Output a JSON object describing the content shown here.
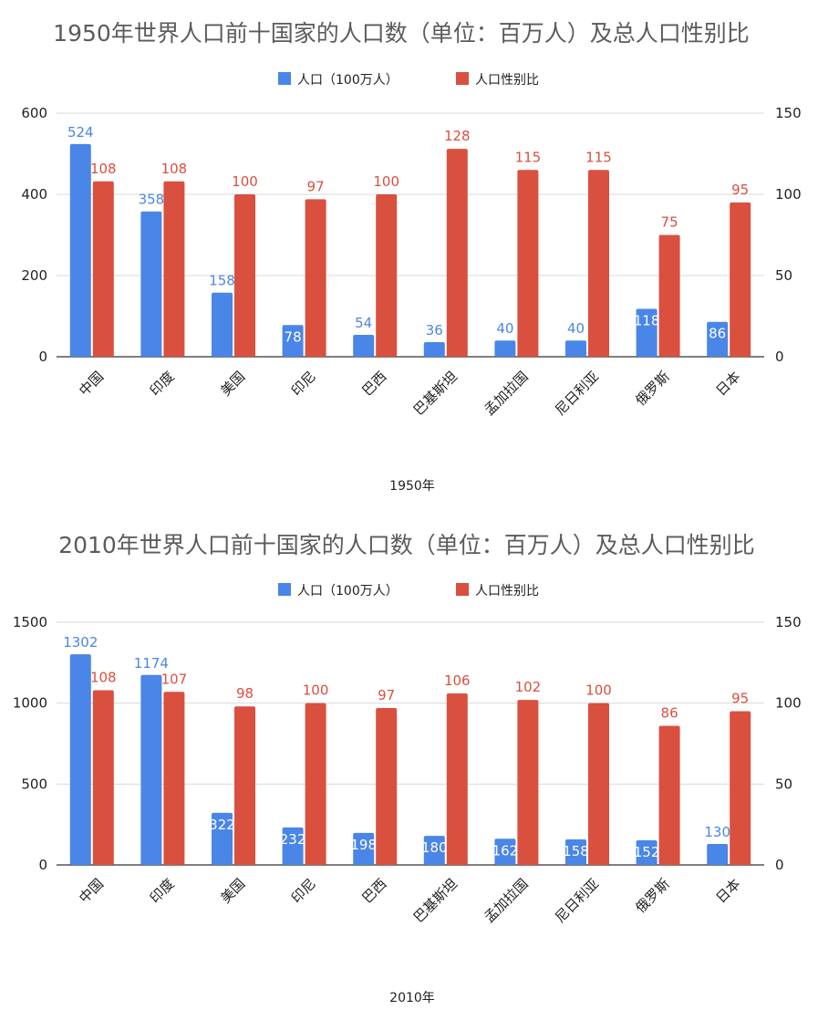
{
  "chart_data": [
    {
      "type": "bar",
      "title": "1950年世界人口前十国家的人口数（单位：百万人）及总人口性别比",
      "xlabel": "1950年",
      "categories": [
        "中国",
        "印度",
        "美国",
        "印尼",
        "巴西",
        "巴基斯坦",
        "孟加拉国",
        "尼日利亚",
        "俄罗斯",
        "日本"
      ],
      "series": [
        {
          "name": "人口（100万人）",
          "axis": "left",
          "color": "#4a86e8",
          "values": [
            524,
            358,
            158,
            78,
            54,
            36,
            40,
            40,
            118,
            86
          ]
        },
        {
          "name": "人口性别比",
          "axis": "right",
          "color": "#d9503f",
          "values": [
            108,
            108,
            100,
            97,
            100,
            128,
            115,
            115,
            75,
            95
          ]
        }
      ],
      "ylim_left": [
        0,
        600
      ],
      "yticks_left": [
        0,
        200,
        400,
        600
      ],
      "ylim_right": [
        0,
        150
      ],
      "yticks_right": [
        0,
        50,
        100,
        150
      ],
      "legend": "top",
      "grid": true
    },
    {
      "type": "bar",
      "title": "2010年世界人口前十国家的人口数（单位：百万人）及总人口性别比",
      "xlabel": "2010年",
      "categories": [
        "中国",
        "印度",
        "美国",
        "印尼",
        "巴西",
        "巴基斯坦",
        "孟加拉国",
        "尼日利亚",
        "俄罗斯",
        "日本"
      ],
      "series": [
        {
          "name": "人口（100万人）",
          "axis": "left",
          "color": "#4a86e8",
          "values": [
            1302,
            1174,
            322,
            232,
            198,
            180,
            162,
            158,
            152,
            130
          ]
        },
        {
          "name": "人口性别比",
          "axis": "right",
          "color": "#d9503f",
          "values": [
            108,
            107,
            98,
            100,
            97,
            106,
            102,
            100,
            86,
            95
          ]
        }
      ],
      "ylim_left": [
        0,
        1500
      ],
      "yticks_left": [
        0,
        500,
        1000,
        1500
      ],
      "ylim_right": [
        0,
        150
      ],
      "yticks_right": [
        0,
        50,
        100,
        150
      ],
      "legend": "top",
      "grid": true
    }
  ]
}
